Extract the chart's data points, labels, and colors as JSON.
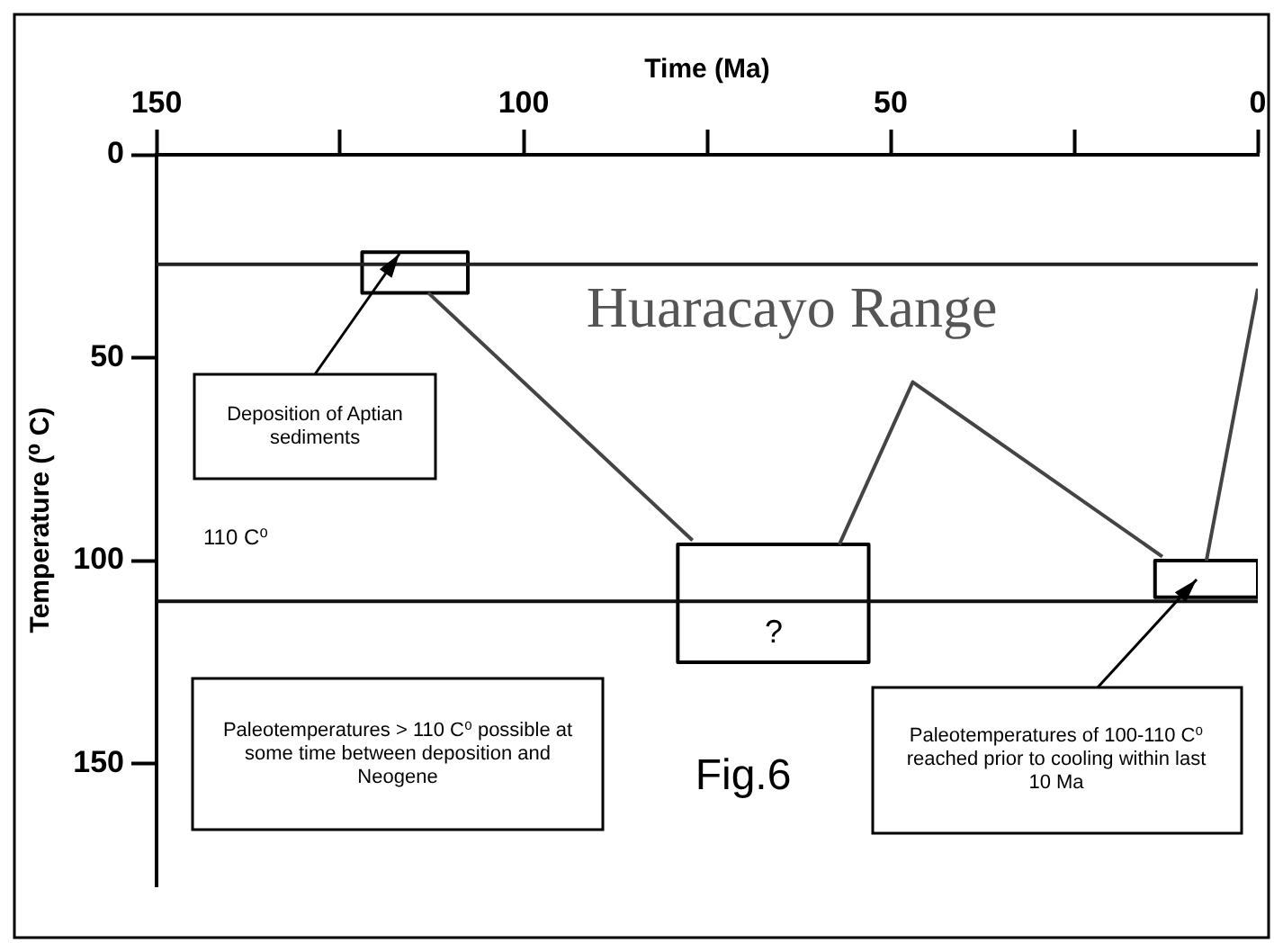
{
  "chart_data": {
    "type": "line",
    "xlabel": "Time (Ma)",
    "ylabel": "Temperature (⁰ C)",
    "xlim": [
      150,
      0
    ],
    "xticks": [
      150,
      {
        "value": 125,
        "label": null
      },
      100,
      {
        "value": 75,
        "label": null
      },
      50,
      {
        "value": 25,
        "label": null
      },
      0
    ],
    "ylim": [
      180,
      0
    ],
    "yticks": [
      0,
      50,
      100,
      150
    ],
    "series": [
      {
        "color": "#444444",
        "x": [
          113,
          77,
          67,
          57,
          47,
          13,
          10,
          7,
          0
        ],
        "values": [
          34,
          95,
          null,
          96,
          56,
          99,
          null,
          100,
          33
        ]
      },
      {
        "color": "#000000",
        "x": [
          122,
          107.6
        ],
        "values": [
          24,
          24
        ]
      },
      {
        "color": "#000000",
        "x": [
          122,
          107.6
        ],
        "values": [
          34,
          34
        ]
      },
      {
        "color": "#000000",
        "x": [
          79,
          53
        ],
        "values": [
          96,
          96
        ]
      },
      {
        "color": "#000000",
        "x": [
          79,
          53
        ],
        "values": [
          125,
          125
        ]
      },
      {
        "color": "#000000",
        "x": [
          14,
          0
        ],
        "values": [
          100,
          100
        ]
      },
      {
        "color": "#000000",
        "x": [
          14,
          0
        ],
        "values": [
          109,
          109
        ]
      },
      {
        "color": "#000000",
        "x": [
          122,
          122
        ],
        "values": [
          24,
          34
        ]
      },
      {
        "color": "#000000",
        "x": [
          107.6,
          107.6
        ],
        "values": [
          24,
          34
        ]
      },
      {
        "color": "#000000",
        "x": [
          79,
          79
        ],
        "values": [
          96,
          125
        ]
      },
      {
        "color": "#000000",
        "x": [
          53,
          53
        ],
        "values": [
          96,
          125
        ]
      },
      {
        "color": "#000000",
        "x": [
          14,
          14
        ],
        "values": [
          100,
          109
        ]
      },
      {
        "color": "#000000",
        "x": [
          0,
          0
        ],
        "values": [
          100,
          109
        ]
      }
    ],
    "ref_lines": [
      {
        "axis": "y",
        "value": 27,
        "label": "Huaracayo Range",
        "color": "#222222"
      },
      {
        "axis": "y",
        "value": 110,
        "label": "110 C⁰",
        "color": "#111111"
      }
    ],
    "annotations": [
      "Deposition of Aptian sediments",
      "?",
      "Paleotemperatures > 110 C⁰ possible at some time between deposition and Neogene",
      "Fig.6",
      "Paleotemperatures of 100-110 C⁰ reached prior to cooling within last 10 Ma"
    ],
    "grid": false,
    "legend": false,
    "marker": "none",
    "line_style": "solid"
  }
}
